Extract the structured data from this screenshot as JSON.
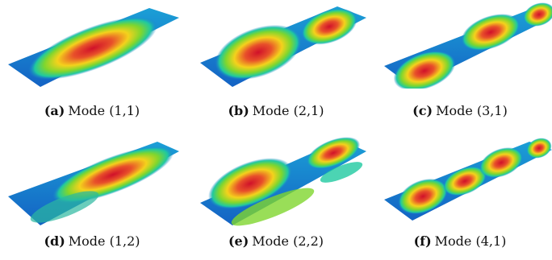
{
  "figure": {
    "panels": [
      {
        "tag": "(a)",
        "label": "Mode (1,1)",
        "mode": [
          1,
          1
        ]
      },
      {
        "tag": "(b)",
        "label": "Mode (2,1)",
        "mode": [
          2,
          1
        ]
      },
      {
        "tag": "(c)",
        "label": "Mode (3,1)",
        "mode": [
          3,
          1
        ]
      },
      {
        "tag": "(d)",
        "label": "Mode (1,2)",
        "mode": [
          1,
          2
        ]
      },
      {
        "tag": "(e)",
        "label": "Mode (2,2)",
        "mode": [
          2,
          2
        ]
      },
      {
        "tag": "(f)",
        "label": "Mode (4,1)",
        "mode": [
          4,
          1
        ]
      }
    ]
  }
}
